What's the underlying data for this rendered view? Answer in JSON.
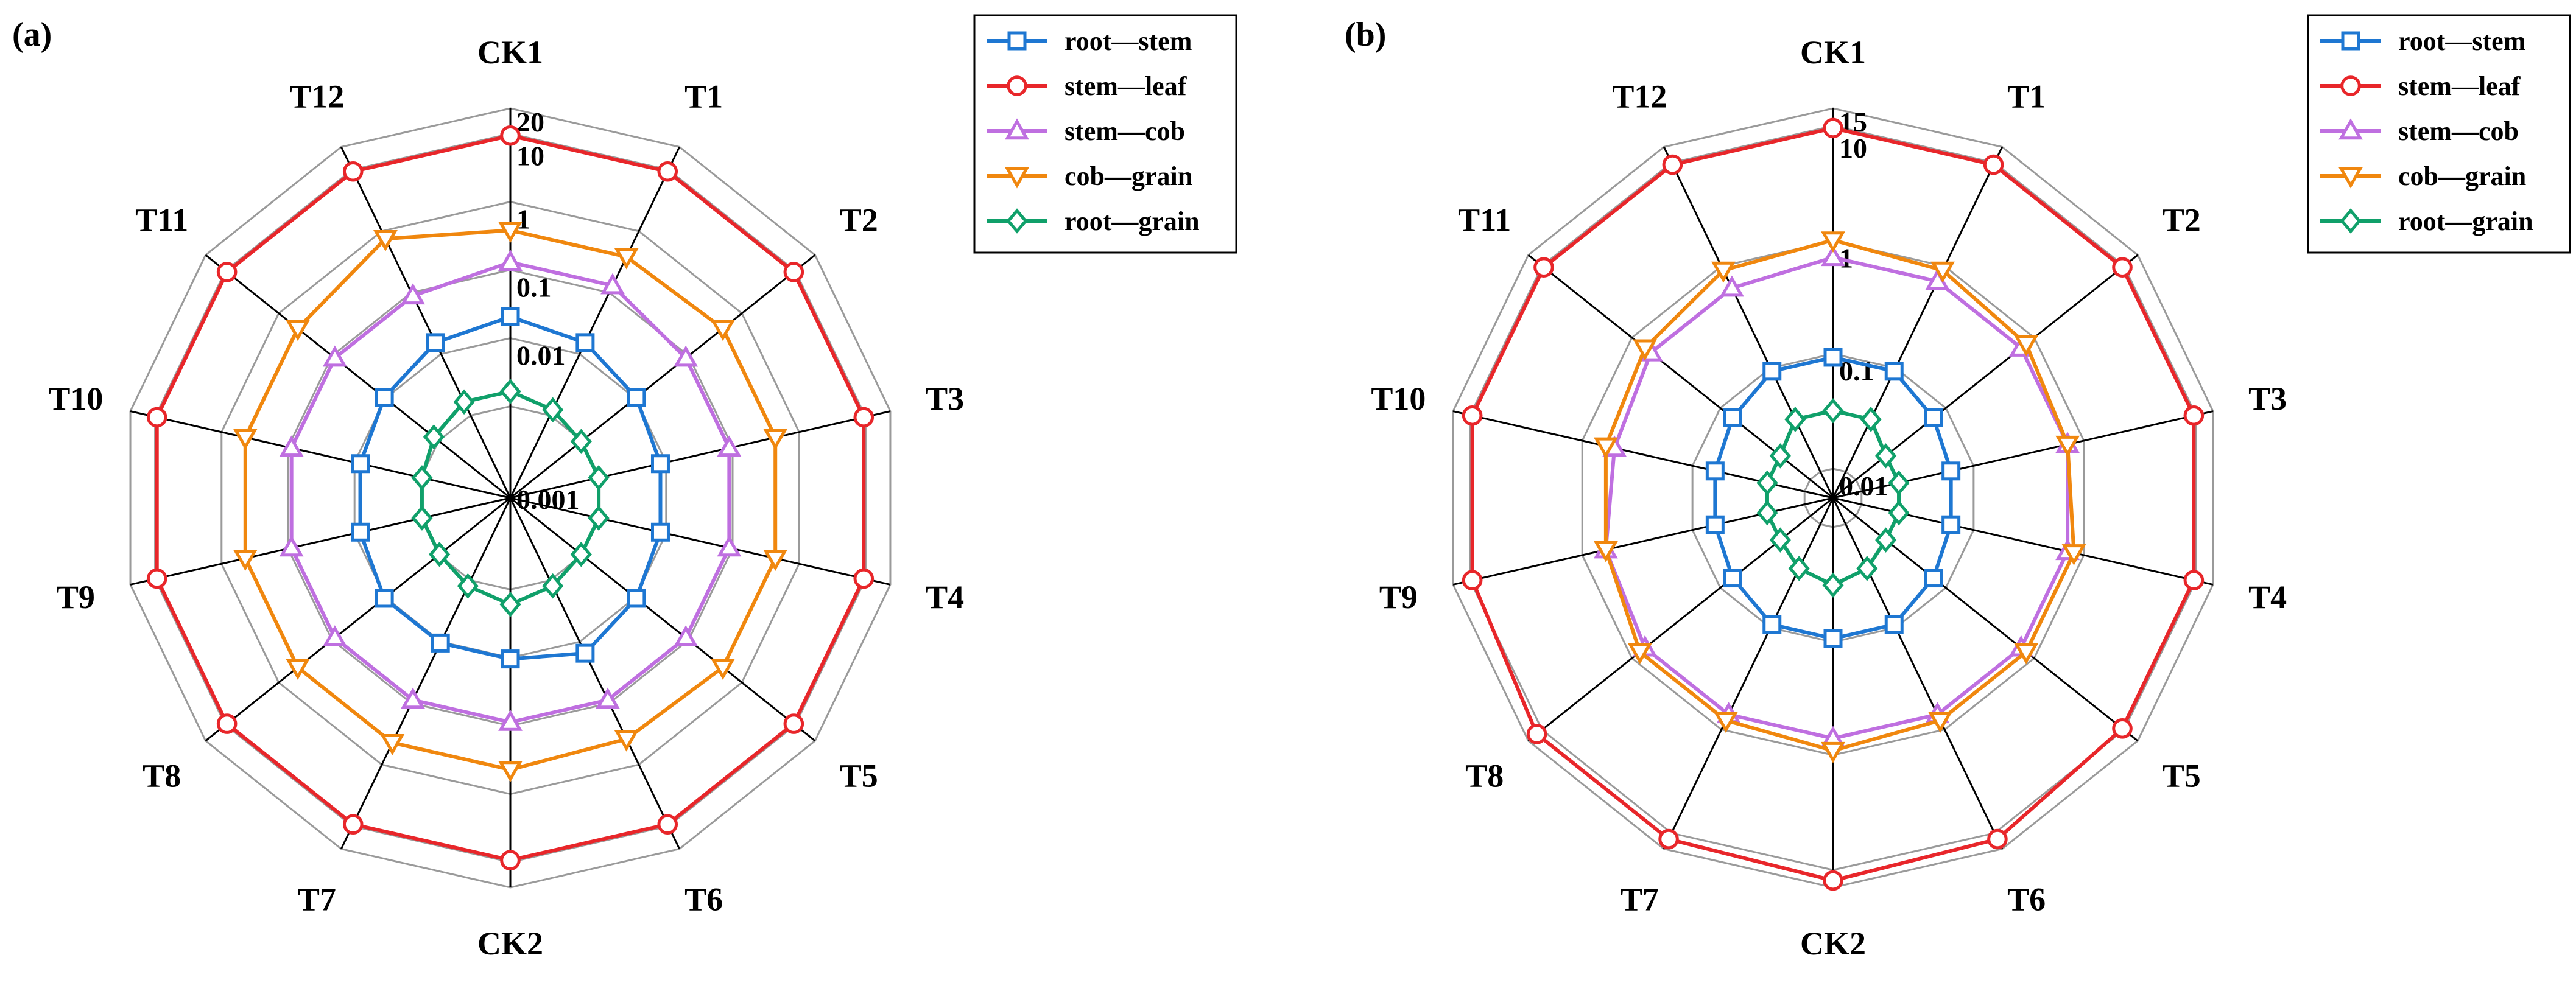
{
  "figure": {
    "panels": [
      "(a)",
      "(b)"
    ]
  },
  "colors": {
    "root_stem": "#1e77d2",
    "stem_leaf": "#e8262a",
    "stem_cob": "#bf6fe0",
    "cob_grain": "#f0870e",
    "root_grain": "#10a06a",
    "ring": "#9a9a9a",
    "spoke": "#000000"
  },
  "icons": {
    "root_stem": "square-marker",
    "stem_leaf": "circle-marker",
    "stem_cob": "triangle-up-marker",
    "cob_grain": "triangle-down-marker",
    "root_grain": "diamond-marker"
  },
  "chart_data": [
    {
      "type": "radar",
      "panel_label": "(a)",
      "scale": "log",
      "categories": [
        "CK1",
        "T1",
        "T2",
        "T3",
        "T4",
        "T5",
        "T6",
        "CK2",
        "T7",
        "T8",
        "T9",
        "T10",
        "T11",
        "T12"
      ],
      "ticks": [
        "20",
        "10",
        "1",
        "0.1",
        "0.01",
        "0.001"
      ],
      "rlim": [
        0.001,
        20
      ],
      "grid": true,
      "legend": "top-right",
      "series": [
        {
          "name": "root—stem",
          "key": "root_stem",
          "marker": "square",
          "values": [
            0.1,
            0.08,
            0.06,
            0.05,
            0.05,
            0.06,
            0.08,
            0.06,
            0.06,
            0.06,
            0.05,
            0.05,
            0.06,
            0.08
          ]
        },
        {
          "name": "stem—leaf",
          "key": "stem_leaf",
          "marker": "circle",
          "values": [
            10,
            10,
            10,
            10,
            10,
            10,
            10,
            10,
            10,
            10,
            10,
            10,
            10,
            10
          ]
        },
        {
          "name": "stem—cob",
          "key": "stem_cob",
          "marker": "triangle-up",
          "values": [
            0.4,
            0.4,
            0.3,
            0.3,
            0.3,
            0.3,
            0.3,
            0.3,
            0.3,
            0.3,
            0.3,
            0.3,
            0.3,
            0.3
          ]
        },
        {
          "name": "cob—grain",
          "key": "cob_grain",
          "marker": "triangle-down",
          "values": [
            0.9,
            0.9,
            1.0,
            1.0,
            1.0,
            1.0,
            0.9,
            1.0,
            1.0,
            1.0,
            1.0,
            1.0,
            1.0,
            1.5
          ]
        },
        {
          "name": "root—grain",
          "key": "root_grain",
          "marker": "diamond",
          "values": [
            0.015,
            0.012,
            0.01,
            0.01,
            0.01,
            0.01,
            0.012,
            0.015,
            0.012,
            0.01,
            0.01,
            0.01,
            0.012,
            0.015
          ]
        }
      ]
    },
    {
      "type": "radar",
      "panel_label": "(b)",
      "scale": "log",
      "categories": [
        "CK1",
        "T1",
        "T2",
        "T3",
        "T4",
        "T5",
        "T6",
        "CK2",
        "T7",
        "T8",
        "T9",
        "T10",
        "T11",
        "T12"
      ],
      "ticks": [
        "15",
        "10",
        "1",
        "0.1",
        "0.01"
      ],
      "rlim": [
        0.005,
        15
      ],
      "grid": true,
      "legend": "top-right",
      "series": [
        {
          "name": "root—stem",
          "key": "root_stem",
          "marker": "square",
          "values": [
            0.09,
            0.09,
            0.07,
            0.06,
            0.06,
            0.07,
            0.09,
            0.09,
            0.09,
            0.07,
            0.06,
            0.06,
            0.07,
            0.09
          ]
        },
        {
          "name": "stem—leaf",
          "key": "stem_leaf",
          "marker": "circle",
          "values": [
            10,
            10,
            10,
            10,
            10,
            10,
            12,
            13,
            12,
            12,
            10,
            10,
            10,
            10
          ]
        },
        {
          "name": "stem—cob",
          "key": "stem_cob",
          "marker": "triangle-up",
          "values": [
            0.7,
            0.7,
            0.7,
            0.7,
            0.7,
            0.7,
            0.7,
            0.7,
            0.7,
            0.7,
            0.6,
            0.5,
            0.6,
            0.6
          ]
        },
        {
          "name": "cob—grain",
          "key": "cob_grain",
          "marker": "triangle-down",
          "values": [
            1.0,
            0.9,
            0.8,
            0.7,
            0.8,
            0.8,
            0.8,
            0.9,
            0.8,
            0.8,
            0.6,
            0.6,
            0.7,
            0.9
          ]
        },
        {
          "name": "root—grain",
          "key": "root_grain",
          "marker": "diamond",
          "values": [
            0.03,
            0.03,
            0.02,
            0.02,
            0.02,
            0.02,
            0.025,
            0.03,
            0.025,
            0.02,
            0.02,
            0.02,
            0.02,
            0.03
          ]
        }
      ]
    }
  ]
}
